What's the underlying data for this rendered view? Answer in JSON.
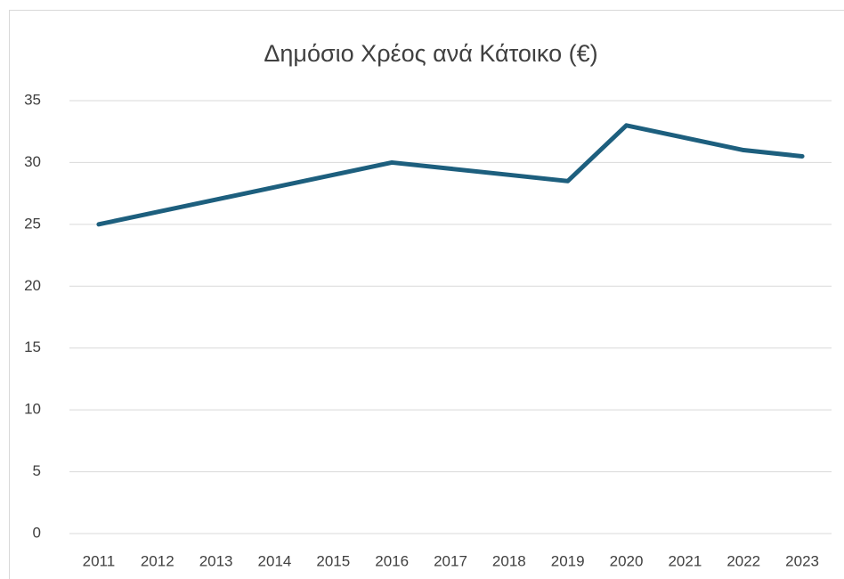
{
  "chart_data": {
    "type": "line",
    "title": "Δημόσιο Χρέος ανά Κάτοικο (€)",
    "categories": [
      "2011",
      "2012",
      "2013",
      "2014",
      "2015",
      "2016",
      "2017",
      "2018",
      "2019",
      "2020",
      "2021",
      "2022",
      "2023"
    ],
    "values": [
      25,
      26,
      27,
      28,
      29,
      30,
      29.5,
      29,
      28.5,
      33,
      32,
      31,
      30.5
    ],
    "color": "#1d5f7e",
    "ylim": [
      0,
      35
    ],
    "yticks": [
      0,
      5,
      10,
      15,
      20,
      25,
      30,
      35
    ],
    "grid": true
  }
}
